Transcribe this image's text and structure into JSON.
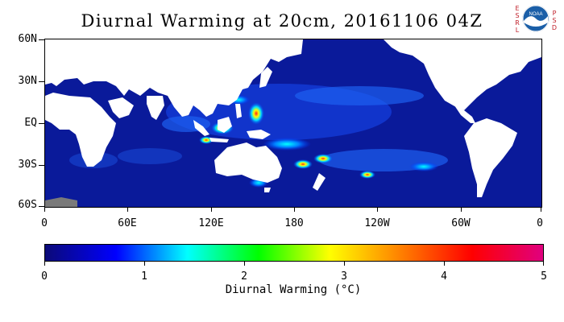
{
  "title": "Diurnal Warming at 20cm, 20161106 04Z",
  "map": {
    "lat_labels": [
      {
        "text": "60N",
        "lat": 60
      },
      {
        "text": "30N",
        "lat": 30
      },
      {
        "text": "EQ",
        "lat": 0
      },
      {
        "text": "30S",
        "lat": -30
      },
      {
        "text": "60S",
        "lat": -60
      }
    ],
    "lon_labels": [
      {
        "text": "0",
        "lon": 0
      },
      {
        "text": "60E",
        "lon": 60
      },
      {
        "text": "120E",
        "lon": 120
      },
      {
        "text": "180",
        "lon": 180
      },
      {
        "text": "120W",
        "lon": 240
      },
      {
        "text": "60W",
        "lon": 300
      },
      {
        "text": "0",
        "lon": 360
      }
    ],
    "ocean_color": "#0a1a9a",
    "land_color": "#ffffff",
    "antarctica_color": "#7a7a7a"
  },
  "colorbar": {
    "title": "Diurnal Warming (°C)",
    "min": 0,
    "max": 5,
    "tick_labels": [
      "0",
      "1",
      "2",
      "3",
      "4",
      "5"
    ],
    "colors": [
      "#0b0a78",
      "#0000ff",
      "#00ffff",
      "#00ff00",
      "#ffff00",
      "#ff8000",
      "#ff0000",
      "#e0007f"
    ]
  },
  "logo": {
    "left_letters": [
      "E",
      "S",
      "R",
      "L"
    ],
    "right_letters": [
      "P",
      "S",
      "D"
    ],
    "badge_text": "NOAA"
  }
}
